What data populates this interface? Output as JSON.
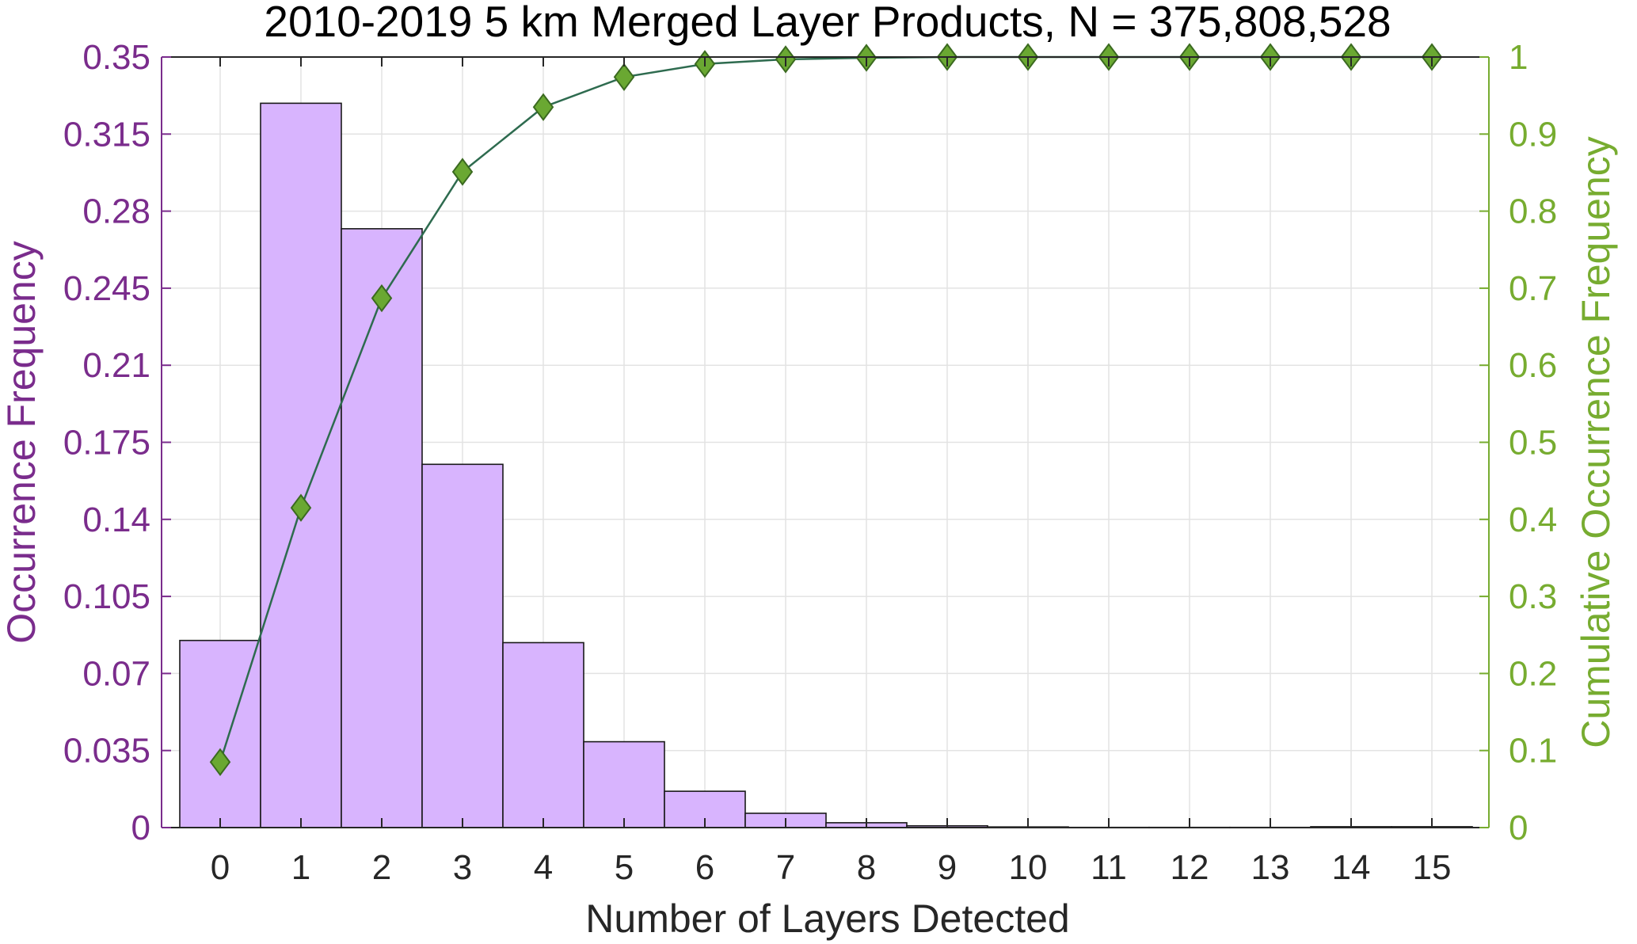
{
  "chart_data": {
    "type": "bar+line",
    "title": "2010-2019 5 km Merged Layer Products, N = 375,808,528",
    "xlabel": "Number of Layers Detected",
    "ylabel_left": "Occurrence Frequency",
    "ylabel_right": "Cumulative Occurrence Frequency",
    "categories": [
      "0",
      "1",
      "2",
      "3",
      "4",
      "5",
      "6",
      "7",
      "8",
      "9",
      "10",
      "11",
      "12",
      "13",
      "14",
      "15"
    ],
    "ylim_left": [
      0,
      0.35
    ],
    "yticks_left": [
      "0",
      "0.035",
      "0.07",
      "0.105",
      "0.14",
      "0.175",
      "0.21",
      "0.245",
      "0.28",
      "0.315",
      "0.35"
    ],
    "ylim_right": [
      0,
      1
    ],
    "yticks_right": [
      "0",
      "0.1",
      "0.2",
      "0.3",
      "0.4",
      "0.5",
      "0.6",
      "0.7",
      "0.8",
      "0.9",
      "1"
    ],
    "grid": true,
    "series": [
      {
        "chart": "bar",
        "axis": "left",
        "values": [
          0.085,
          0.329,
          0.272,
          0.165,
          0.084,
          0.039,
          0.0165,
          0.0065,
          0.0022,
          0.0008,
          0.0003,
          0.0001,
          0.0001,
          0.0001,
          0.0004,
          0.0004
        ]
      },
      {
        "chart": "line",
        "axis": "right",
        "marker": "diamond",
        "values": [
          0.085,
          0.415,
          0.687,
          0.851,
          0.935,
          0.974,
          0.991,
          0.997,
          0.999,
          1.0,
          1.0,
          1.0,
          1.0,
          1.0,
          1.0,
          1.0
        ]
      }
    ],
    "colors": {
      "bar_fill": "#d8b4fe",
      "bar_edge": "#1a1a1a",
      "line": "#2e6b4f",
      "marker_fill": "#6aa832",
      "marker_edge": "#3b6a20",
      "left_axis": "#7a2c8c",
      "right_axis": "#77ac30",
      "grid": "#e3e3e3",
      "text": "#000000"
    }
  }
}
